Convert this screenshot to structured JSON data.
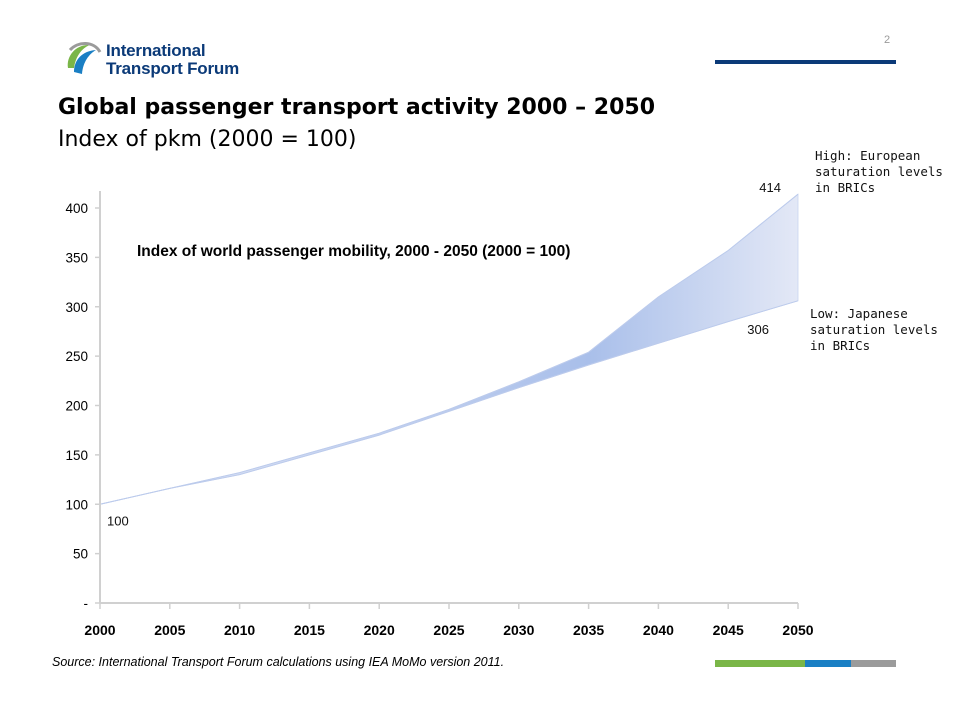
{
  "header": {
    "logo_line1": "International",
    "logo_line2": "Transport Forum",
    "page_number": "2"
  },
  "slide": {
    "title": "Global passenger transport activity 2000 – 2050",
    "subtitle": "Index of pkm (2000 = 100)"
  },
  "annotations": {
    "high": "High: European saturation levels in BRICs",
    "low": "Low: Japanese saturation levels in BRICs"
  },
  "footer": {
    "source": "Source: International Transport Forum calculations using IEA MoMo version 2011."
  },
  "colors": {
    "brand_blue": "#0b3a78",
    "band_light": "#e6eaf7",
    "band_dark": "#a9bfea",
    "bar_green": "#7ab648",
    "bar_blue": "#1a7fc4",
    "bar_grey": "#9b9b9b"
  },
  "chart_data": {
    "type": "area",
    "title": "Index of world passenger mobility, 2000 - 2050 (2000 = 100)",
    "x": [
      2000,
      2005,
      2010,
      2015,
      2020,
      2025,
      2030,
      2035,
      2040,
      2045,
      2050
    ],
    "series": [
      {
        "name": "High",
        "values": [
          100,
          116,
          132,
          152,
          172,
          196,
          224,
          254,
          310,
          357,
          414
        ]
      },
      {
        "name": "Low",
        "values": [
          100,
          116,
          130,
          150,
          170,
          194,
          218,
          241,
          263,
          285,
          306
        ]
      }
    ],
    "xticks": [
      "2000",
      "2005",
      "2010",
      "2015",
      "2020",
      "2025",
      "2030",
      "2035",
      "2040",
      "2045",
      "2050"
    ],
    "yticks": [
      "-",
      "50",
      "100",
      "150",
      "200",
      "250",
      "300",
      "350",
      "400"
    ],
    "ylim": [
      0,
      414
    ],
    "xlim": [
      2000,
      2050
    ],
    "data_labels": [
      {
        "text": "100",
        "x": 2000,
        "y": 100
      },
      {
        "text": "414",
        "x": 2050,
        "y": 414
      },
      {
        "text": "306",
        "x": 2050,
        "y": 306
      }
    ],
    "grid": false,
    "legend": "none"
  }
}
